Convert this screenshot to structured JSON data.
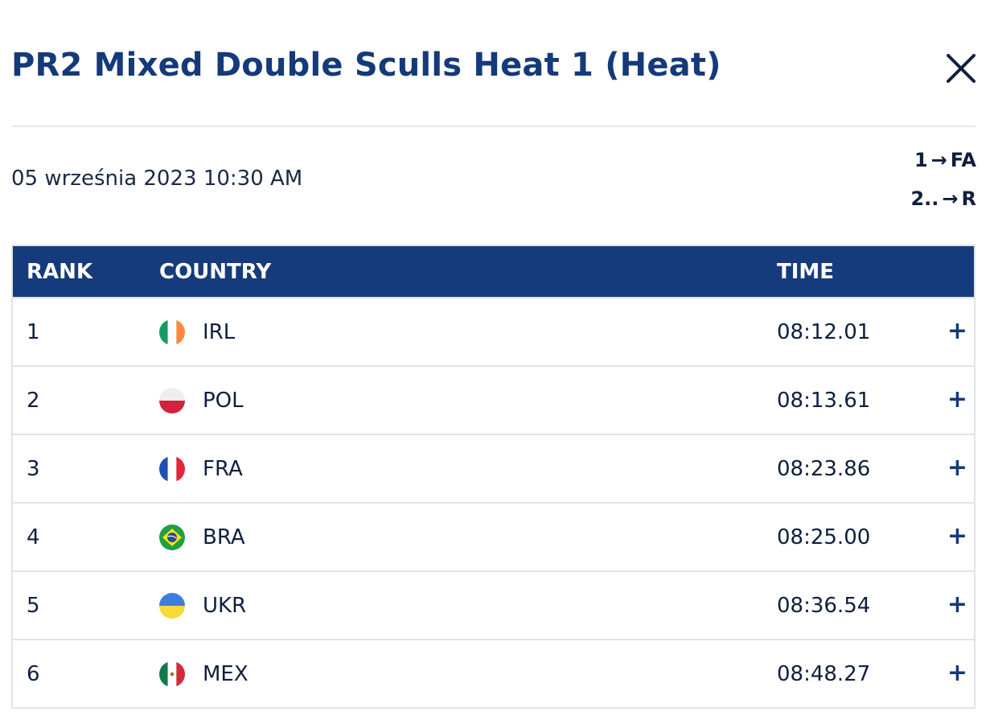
{
  "header": {
    "title": "PR2 Mixed Double Sculls Heat 1 (Heat)",
    "date": "05 września 2023 10:30 AM",
    "progression": [
      {
        "from": "1",
        "to": "FA"
      },
      {
        "from": "2..",
        "to": "R"
      }
    ]
  },
  "table": {
    "columns": {
      "rank": "RANK",
      "country": "COUNTRY",
      "time": "TIME"
    },
    "rows": [
      {
        "rank": "1",
        "country": "IRL",
        "time": "08:12.01",
        "flag": "ireland-flag-icon",
        "expand": "+"
      },
      {
        "rank": "2",
        "country": "POL",
        "time": "08:13.61",
        "flag": "poland-flag-icon",
        "expand": "+"
      },
      {
        "rank": "3",
        "country": "FRA",
        "time": "08:23.86",
        "flag": "france-flag-icon",
        "expand": "+"
      },
      {
        "rank": "4",
        "country": "BRA",
        "time": "08:25.00",
        "flag": "brazil-flag-icon",
        "expand": "+"
      },
      {
        "rank": "5",
        "country": "UKR",
        "time": "08:36.54",
        "flag": "ukraine-flag-icon",
        "expand": "+"
      },
      {
        "rank": "6",
        "country": "MEX",
        "time": "08:48.27",
        "flag": "mexico-flag-icon",
        "expand": "+"
      }
    ]
  },
  "colors": {
    "brand": "#143a7a",
    "header_bg": "#163b7c",
    "border": "#dfe4ea"
  }
}
